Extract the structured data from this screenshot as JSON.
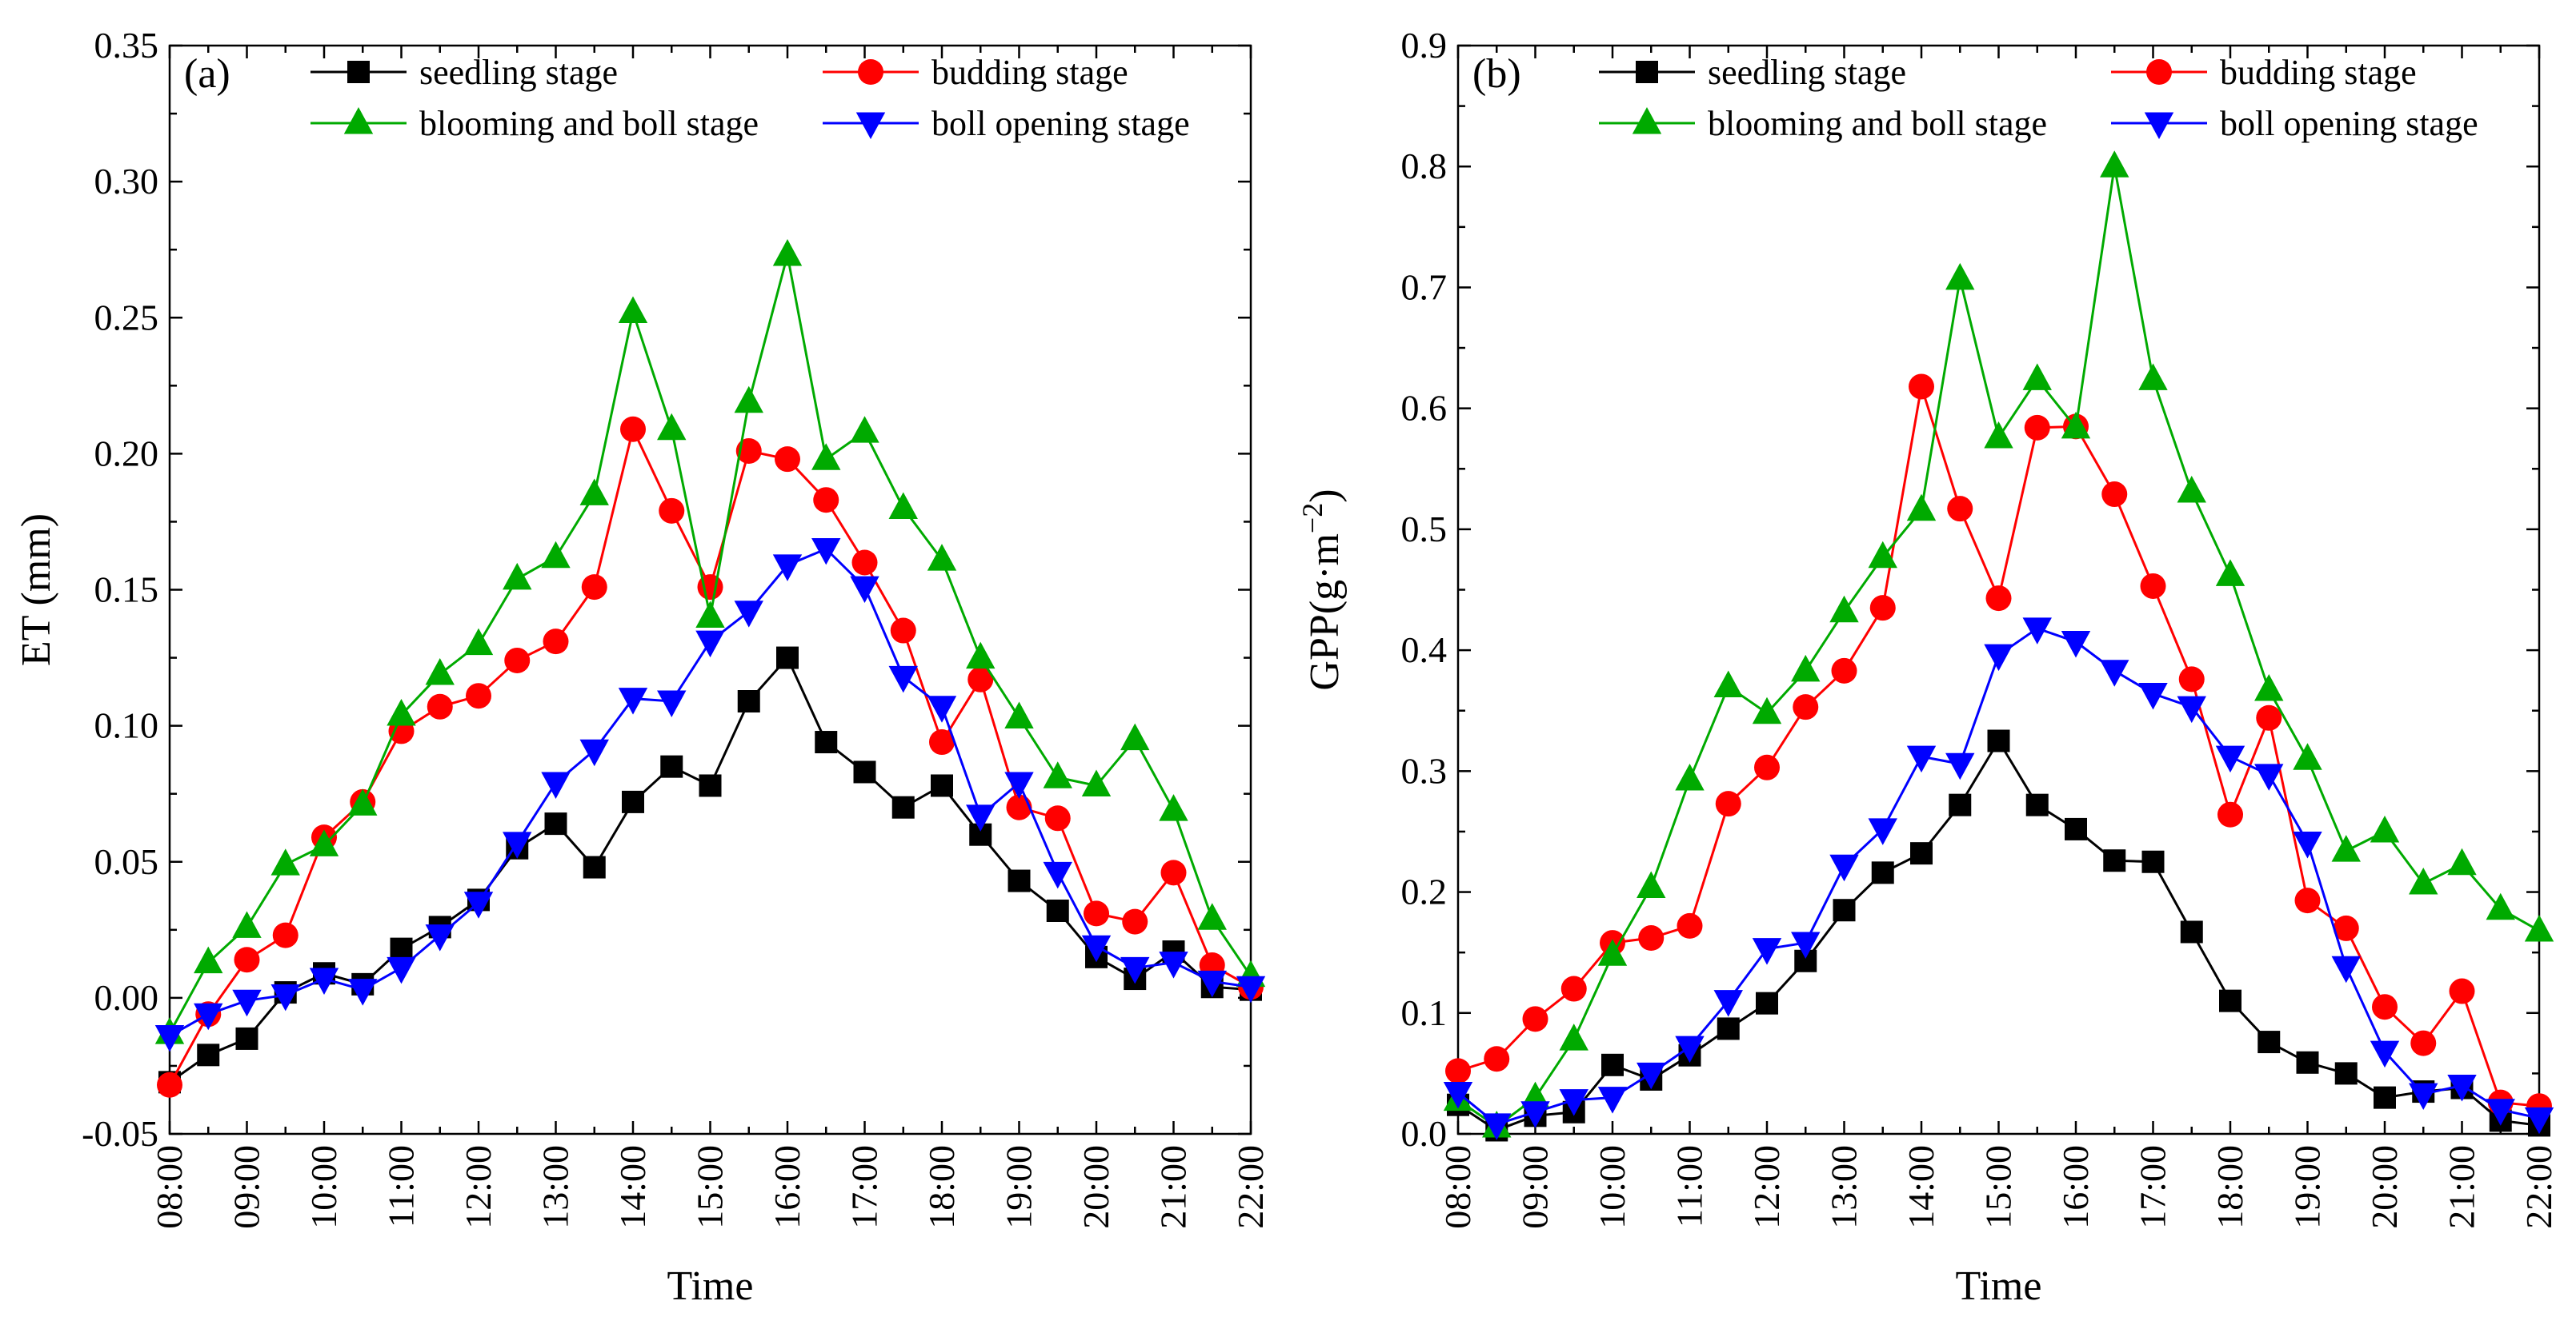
{
  "chart_data": [
    {
      "type": "line",
      "panel": "(a)",
      "xlabel": "Time",
      "ylabel": "ET (mm)",
      "ylim": [
        -0.05,
        0.35
      ],
      "yticks": [
        "-0.05",
        "0.00",
        "0.05",
        "0.10",
        "0.15",
        "0.20",
        "0.25",
        "0.30",
        "0.35"
      ],
      "yticks_values": [
        -0.05,
        0,
        0.05,
        0.1,
        0.15,
        0.2,
        0.25,
        0.3,
        0.35
      ],
      "xticks": [
        "08:00",
        "09:00",
        "10:00",
        "11:00",
        "12:00",
        "13:00",
        "14:00",
        "15:00",
        "16:00",
        "17:00",
        "18:00",
        "19:00",
        "20:00",
        "21:00",
        "22:00"
      ],
      "x": [
        8,
        8.5,
        9,
        9.5,
        10,
        10.5,
        11,
        11.5,
        12,
        12.5,
        13,
        13.5,
        14,
        14.5,
        15,
        15.5,
        16,
        16.5,
        17,
        17.5,
        18,
        18.5,
        19,
        19.5,
        20,
        20.5,
        21,
        21.5,
        22
      ],
      "xlim": [
        8,
        22
      ],
      "series": [
        {
          "name": "seedling stage",
          "color": "#000000",
          "marker": "square",
          "values": [
            -0.031,
            -0.021,
            -0.015,
            0.002,
            0.009,
            0.005,
            0.018,
            0.026,
            0.036,
            0.055,
            0.064,
            0.048,
            0.072,
            0.085,
            0.078,
            0.109,
            0.125,
            0.094,
            0.083,
            0.07,
            0.078,
            0.06,
            0.043,
            0.032,
            0.015,
            0.007,
            0.017,
            0.004,
            0.003
          ]
        },
        {
          "name": "budding stage",
          "color": "#ff0000",
          "marker": "circle",
          "values": [
            -0.032,
            -0.006,
            0.014,
            0.023,
            0.059,
            0.072,
            0.098,
            0.107,
            0.111,
            0.124,
            0.131,
            0.151,
            0.209,
            0.179,
            0.151,
            0.201,
            0.198,
            0.183,
            0.16,
            0.135,
            0.094,
            0.117,
            0.07,
            0.066,
            0.031,
            0.028,
            0.046,
            0.012,
            0.004
          ]
        },
        {
          "name": "blooming and boll stage",
          "color": "#00aa00",
          "marker": "triangle-up",
          "values": [
            -0.013,
            0.013,
            0.026,
            0.049,
            0.056,
            0.071,
            0.104,
            0.119,
            0.13,
            0.154,
            0.162,
            0.185,
            0.252,
            0.209,
            0.14,
            0.219,
            0.273,
            0.198,
            0.208,
            0.18,
            0.161,
            0.125,
            0.103,
            0.081,
            0.078,
            0.095,
            0.069,
            0.029,
            0.008
          ]
        },
        {
          "name": "boll opening stage",
          "color": "#0000ff",
          "marker": "triangle-down",
          "values": [
            -0.014,
            -0.006,
            -0.001,
            0.001,
            0.007,
            0.003,
            0.011,
            0.023,
            0.035,
            0.057,
            0.079,
            0.091,
            0.11,
            0.109,
            0.131,
            0.142,
            0.159,
            0.165,
            0.151,
            0.118,
            0.107,
            0.067,
            0.079,
            0.046,
            0.019,
            0.011,
            0.013,
            0.006,
            0.004
          ]
        }
      ]
    },
    {
      "type": "line",
      "panel": "(b)",
      "xlabel": "Time",
      "ylabel_main": "GPP(g·m",
      "ylabel_sup": "−2",
      "ylabel_close": ")",
      "ylim": [
        0,
        0.9
      ],
      "yticks": [
        "0.0",
        "0.1",
        "0.2",
        "0.3",
        "0.4",
        "0.5",
        "0.6",
        "0.7",
        "0.8",
        "0.9"
      ],
      "yticks_values": [
        0,
        0.1,
        0.2,
        0.3,
        0.4,
        0.5,
        0.6,
        0.7,
        0.8,
        0.9
      ],
      "xticks": [
        "08:00",
        "09:00",
        "10:00",
        "11:00",
        "12:00",
        "13:00",
        "14:00",
        "15:00",
        "16:00",
        "17:00",
        "18:00",
        "19:00",
        "20:00",
        "21:00",
        "22:00"
      ],
      "x": [
        8,
        8.5,
        9,
        9.5,
        10,
        10.5,
        11,
        11.5,
        12,
        12.5,
        13,
        13.5,
        14,
        14.5,
        15,
        15.5,
        16,
        16.5,
        17,
        17.5,
        18,
        18.5,
        19,
        19.5,
        20,
        20.5,
        21,
        21.5,
        22
      ],
      "xlim": [
        8,
        22
      ],
      "series": [
        {
          "name": "seedling stage",
          "color": "#000000",
          "marker": "square",
          "values": [
            0.024,
            0.003,
            0.015,
            0.018,
            0.057,
            0.045,
            0.065,
            0.087,
            0.108,
            0.143,
            0.185,
            0.216,
            0.232,
            0.272,
            0.325,
            0.272,
            0.252,
            0.226,
            0.225,
            0.167,
            0.11,
            0.076,
            0.059,
            0.05,
            0.03,
            0.035,
            0.038,
            0.011,
            0.007
          ]
        },
        {
          "name": "budding stage",
          "color": "#ff0000",
          "marker": "circle",
          "values": [
            0.052,
            0.062,
            0.095,
            0.12,
            0.158,
            0.162,
            0.172,
            0.273,
            0.303,
            0.353,
            0.383,
            0.435,
            0.618,
            0.517,
            0.443,
            0.584,
            0.585,
            0.529,
            0.453,
            0.376,
            0.264,
            0.344,
            0.193,
            0.17,
            0.105,
            0.075,
            0.118,
            0.026,
            0.023
          ]
        },
        {
          "name": "blooming and boll stage",
          "color": "#00aa00",
          "marker": "triangle-up",
          "values": [
            0.028,
            0.006,
            0.03,
            0.078,
            0.148,
            0.204,
            0.293,
            0.37,
            0.348,
            0.383,
            0.432,
            0.477,
            0.516,
            0.707,
            0.576,
            0.624,
            0.584,
            0.8,
            0.624,
            0.531,
            0.462,
            0.367,
            0.31,
            0.234,
            0.25,
            0.207,
            0.223,
            0.186,
            0.168
          ]
        },
        {
          "name": "boll opening stage",
          "color": "#0000ff",
          "marker": "triangle-down",
          "values": [
            0.034,
            0.008,
            0.018,
            0.028,
            0.03,
            0.05,
            0.072,
            0.11,
            0.153,
            0.158,
            0.222,
            0.252,
            0.312,
            0.306,
            0.396,
            0.418,
            0.407,
            0.383,
            0.364,
            0.353,
            0.312,
            0.297,
            0.241,
            0.138,
            0.068,
            0.033,
            0.04,
            0.02,
            0.013
          ]
        }
      ]
    }
  ]
}
